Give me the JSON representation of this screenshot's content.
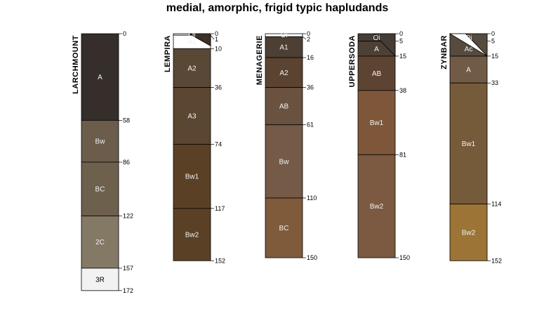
{
  "chart_data": {
    "type": "soil-profile-sketch",
    "title": "medial, amorphic, frigid typic hapludands",
    "depth_units": "cm",
    "profiles": [
      {
        "name": "LARCHMOUNT",
        "horizons": [
          {
            "name": "A",
            "top": 0,
            "bottom": 58,
            "color": "#352e2a"
          },
          {
            "name": "Bw",
            "top": 58,
            "bottom": 86,
            "color": "#6b5c4b"
          },
          {
            "name": "BC",
            "top": 86,
            "bottom": 122,
            "color": "#6d604d"
          },
          {
            "name": "2C",
            "top": 122,
            "bottom": 157,
            "color": "#837965"
          },
          {
            "name": "3R",
            "top": 157,
            "bottom": 172,
            "color": "#f2f2f2"
          }
        ]
      },
      {
        "name": "LEMPIRA",
        "horizons": [
          {
            "name": "Oi",
            "top": 0,
            "bottom": 1,
            "color": "#ffffff"
          },
          {
            "name": "A1",
            "top": 1,
            "bottom": 10,
            "color": "#ffffff"
          },
          {
            "name": "A2",
            "top": 10,
            "bottom": 36,
            "color": "#5a4837"
          },
          {
            "name": "A3",
            "top": 36,
            "bottom": 74,
            "color": "#5a4631"
          },
          {
            "name": "Bw1",
            "top": 74,
            "bottom": 117,
            "color": "#5a4125"
          },
          {
            "name": "Bw2",
            "top": 117,
            "bottom": 152,
            "color": "#5a4125"
          }
        ]
      },
      {
        "name": "MENAGERIE",
        "horizons": [
          {
            "name": "Oi",
            "top": 0,
            "bottom": 2,
            "color": "#ffffff"
          },
          {
            "name": "A1",
            "top": 2,
            "bottom": 16,
            "color": "#4d3f33"
          },
          {
            "name": "A2",
            "top": 16,
            "bottom": 36,
            "color": "#5a4330"
          },
          {
            "name": "AB",
            "top": 36,
            "bottom": 61,
            "color": "#6a5240"
          },
          {
            "name": "Bw",
            "top": 61,
            "bottom": 110,
            "color": "#755b47"
          },
          {
            "name": "BC",
            "top": 110,
            "bottom": 150,
            "color": "#7f5b3c"
          }
        ]
      },
      {
        "name": "UPPERSODA",
        "horizons": [
          {
            "name": "Oi",
            "top": 0,
            "bottom": 5,
            "color": "#443c35"
          },
          {
            "name": "A",
            "top": 5,
            "bottom": 15,
            "color": "#4d4035"
          },
          {
            "name": "AB",
            "top": 15,
            "bottom": 38,
            "color": "#5d4432"
          },
          {
            "name": "Bw1",
            "top": 38,
            "bottom": 81,
            "color": "#7e573a"
          },
          {
            "name": "Bw2",
            "top": 81,
            "bottom": 150,
            "color": "#7b5a41"
          }
        ]
      },
      {
        "name": "ZYNBAR",
        "horizons": [
          {
            "name": "Oi",
            "top": 0,
            "bottom": 5,
            "color": "#564b3f"
          },
          {
            "name": "Ac",
            "top": 5,
            "bottom": 15,
            "color": "#564b3f"
          },
          {
            "name": "A",
            "top": 15,
            "bottom": 33,
            "color": "#725b46"
          },
          {
            "name": "Bw1",
            "top": 33,
            "bottom": 114,
            "color": "#755b39"
          },
          {
            "name": "Bw2",
            "top": 114,
            "bottom": 152,
            "color": "#9c7436"
          }
        ]
      }
    ]
  }
}
